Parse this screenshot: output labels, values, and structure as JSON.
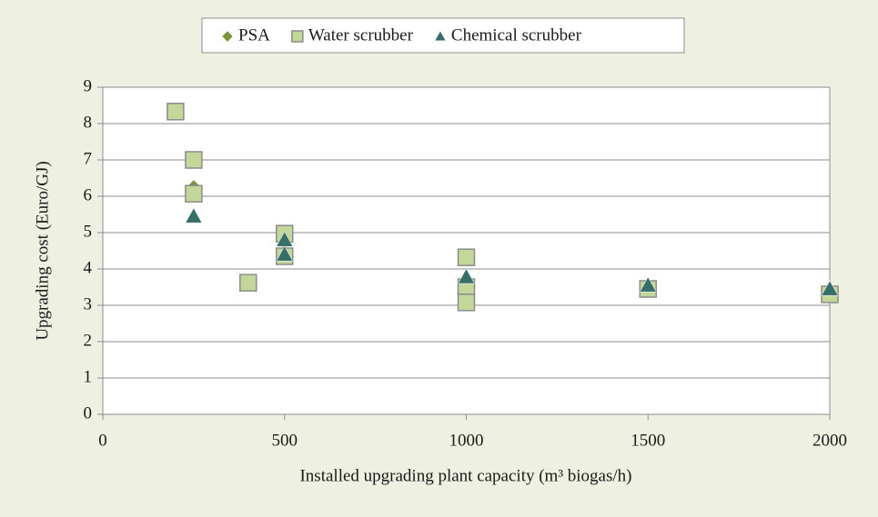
{
  "chart_data": {
    "type": "scatter",
    "x_label": "Installed upgrading plant capacity (m³ biogas/h)",
    "y_label": "Upgrading cost (Euro/GJ)",
    "xlim": [
      0,
      2000
    ],
    "xticks": [
      0,
      500,
      1000,
      1500,
      2000
    ],
    "ylim": [
      0,
      9
    ],
    "yticks": [
      0,
      1,
      2,
      3,
      4,
      5,
      6,
      7,
      8,
      9
    ],
    "grid": true,
    "legend": "top",
    "series": [
      {
        "name": "PSA",
        "color": "#77933c",
        "marker": "diamond",
        "x": [
          250,
          500,
          1000,
          1500,
          2000
        ],
        "values": [
          6.25,
          4.75,
          3.7,
          3.5,
          3.35
        ]
      },
      {
        "name": "Water scrubber",
        "color": "#c4d79b",
        "marker": "square",
        "x": [
          200,
          250,
          250,
          400,
          500,
          500,
          1000,
          1000,
          1000,
          1500,
          2000
        ],
        "values": [
          8.33,
          7.0,
          6.07,
          3.62,
          4.97,
          4.35,
          4.32,
          3.5,
          3.08,
          3.45,
          3.3
        ]
      },
      {
        "name": "Chemical scrubber",
        "color": "#366e6a",
        "marker": "triangle",
        "x": [
          250,
          500,
          500,
          1000,
          1500,
          2000
        ],
        "values": [
          5.45,
          4.8,
          4.4,
          3.78,
          3.55,
          3.45
        ]
      }
    ]
  }
}
